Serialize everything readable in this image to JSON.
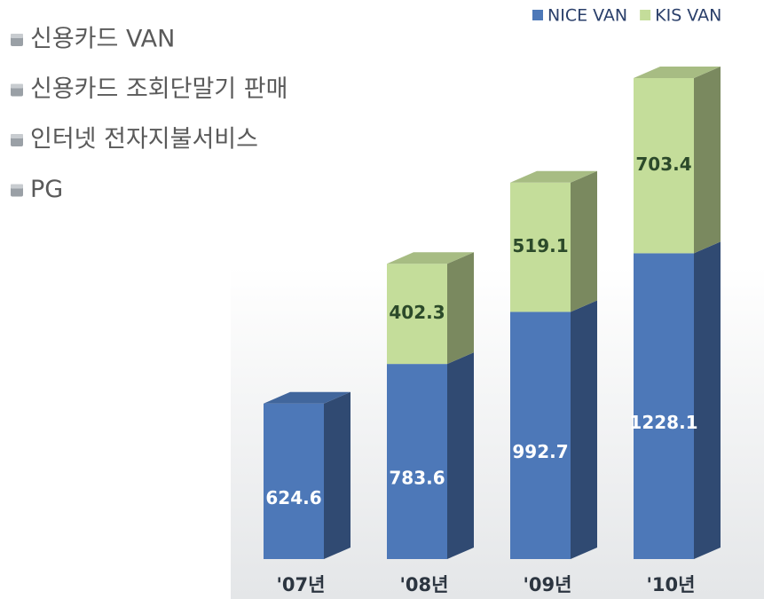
{
  "list_items": [
    "신용카드 VAN",
    "신용카드 조회단말기 판매",
    "인터넷 전자지불서비스",
    "PG"
  ],
  "chart_data": {
    "type": "bar3d_stacked",
    "categories": [
      "'07년",
      "'08년",
      "'09년",
      "'10년"
    ],
    "series": [
      {
        "name": "NICE VAN",
        "color": "#4d78b8",
        "values": [
          624.6,
          783.6,
          992.7,
          1228.1
        ]
      },
      {
        "name": "KIS VAN",
        "color": "#c4dd9a",
        "values": [
          null,
          402.3,
          519.1,
          703.4
        ]
      }
    ]
  }
}
